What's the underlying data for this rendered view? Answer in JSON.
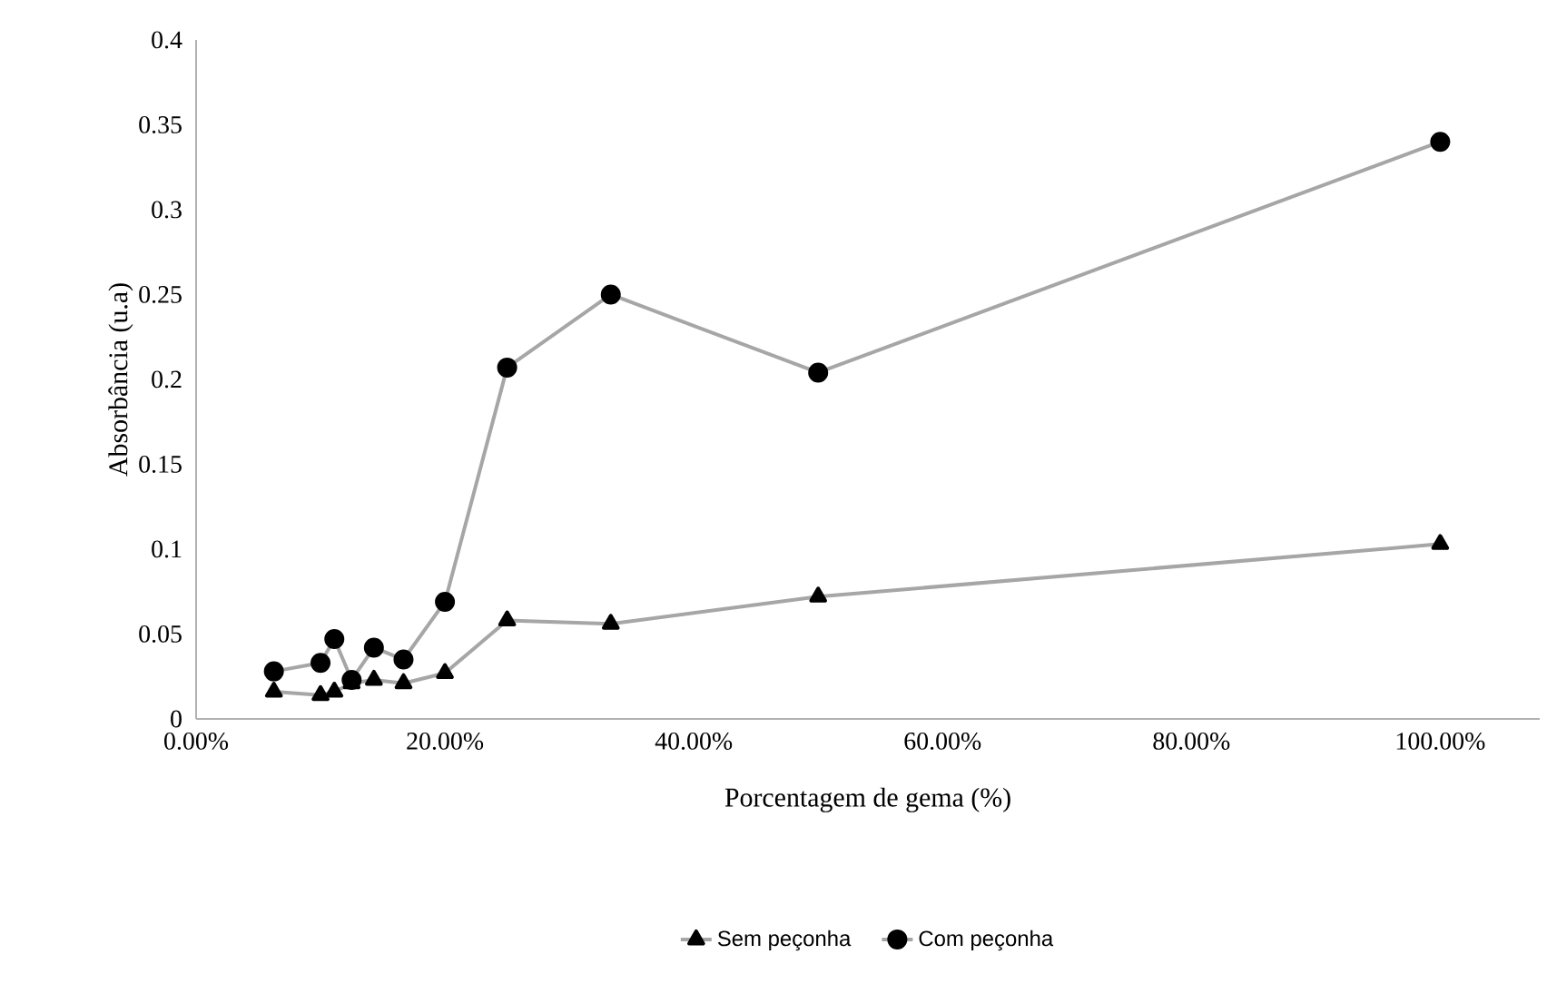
{
  "chart_data": {
    "type": "line",
    "xlabel": "Porcentagem de gema (%)",
    "ylabel": "Absorbância (u.a)",
    "x": [
      6.25,
      10,
      11.11,
      12.5,
      14.29,
      16.67,
      20,
      25,
      33.33,
      50,
      100
    ],
    "xlim": [
      0,
      108
    ],
    "xticks": [
      {
        "value": 0,
        "label": "0.00%"
      },
      {
        "value": 20,
        "label": "20.00%"
      },
      {
        "value": 40,
        "label": "40.00%"
      },
      {
        "value": 60,
        "label": "60.00%"
      },
      {
        "value": 80,
        "label": "80.00%"
      },
      {
        "value": 100,
        "label": "100.00%"
      }
    ],
    "ylim": [
      0,
      0.4
    ],
    "yticks": [
      0,
      0.05,
      0.1,
      0.15,
      0.2,
      0.25,
      0.3,
      0.35,
      0.4
    ],
    "series": [
      {
        "name": "Sem peçonha",
        "color": "#a6a6a6",
        "marker": "triangle",
        "values": [
          0.016,
          0.014,
          0.016,
          0.021,
          0.023,
          0.021,
          0.027,
          0.058,
          0.056,
          0.072,
          0.103
        ]
      },
      {
        "name": "Com peçonha",
        "color": "#a6a6a6",
        "marker": "circle",
        "values": [
          0.028,
          0.033,
          0.047,
          0.023,
          0.042,
          0.035,
          0.069,
          0.207,
          0.25,
          0.204,
          0.34
        ]
      }
    ],
    "grid": false,
    "legend": "bottom",
    "line_style": "solid"
  }
}
